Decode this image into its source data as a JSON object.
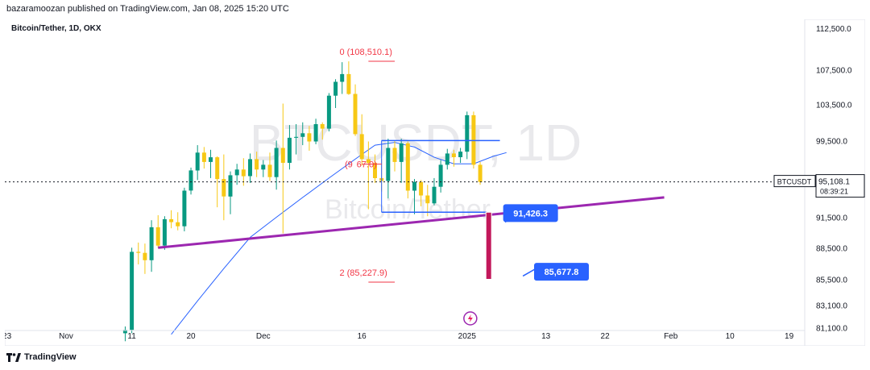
{
  "header": {
    "published_line": "bazaramoozan published on TradingView.com, Jan 08, 2025 15:20 UTC",
    "symbol_line": "Bitcoin/Tether, 1D, OKX",
    "watermark_symbol": "BTCUSDT, 1D",
    "watermark_name": "Bitcoin/Tether"
  },
  "footer": {
    "brand": "TradingView"
  },
  "colors": {
    "up": "#089981",
    "down": "#f7c815",
    "ma": "#2962ff",
    "trendline": "#9c27b0",
    "fib": "#f23645",
    "label_bg": "#2962ff",
    "bar_red": "#c2185b"
  },
  "chart_data": {
    "type": "candlestick",
    "title": "Bitcoin/Tether, 1D, OKX",
    "x_axis": {
      "ticks": [
        {
          "label": "23",
          "day": -9
        },
        {
          "label": "Nov",
          "day": 0
        },
        {
          "label": "11",
          "day": 10
        },
        {
          "label": "20",
          "day": 19
        },
        {
          "label": "Dec",
          "day": 30
        },
        {
          "label": "16",
          "day": 45
        },
        {
          "label": "2025",
          "day": 61
        },
        {
          "label": "13",
          "day": 73
        },
        {
          "label": "22",
          "day": 82
        },
        {
          "label": "Feb",
          "day": 92
        },
        {
          "label": "10",
          "day": 101
        },
        {
          "label": "19",
          "day": 110
        }
      ]
    },
    "y_axis": {
      "scale": "log",
      "range": [
        79500,
        114500
      ],
      "ticks": [
        "112,500.0",
        "107,500.0",
        "103,500.0",
        "99,500.0",
        "91,500.0",
        "88,500.0",
        "85,500.0",
        "83,100.0",
        "81,100.0"
      ]
    },
    "last_price": {
      "symbol": "BTCUSDT",
      "value": "95,108.1",
      "countdown": "08:39:21",
      "price": 95108.1
    },
    "fib_labels": [
      {
        "text": "0 (108,510.1)",
        "price": 108510.1
      },
      {
        "text": "(9",
        "price": 96967
      },
      {
        "text": "67.0)",
        "price": 96967
      },
      {
        "text": "2 (85,227.9)",
        "price": 85227.9
      }
    ],
    "projection_labels": [
      {
        "text": "91,426.3",
        "price": 91426.3
      },
      {
        "text": "85,677.8",
        "price": 85677.8
      }
    ],
    "trendline": {
      "from": {
        "day": 14,
        "price": 88500
      },
      "to": {
        "day": 91,
        "price": 93500
      }
    },
    "range_box": {
      "from_day": 48,
      "to_day": 66,
      "top": 99500,
      "bottom": 92000
    },
    "projection_bar": {
      "day": 64.3,
      "top": 92000,
      "bottom": 85500
    },
    "ma": [
      [
        16,
        80500
      ],
      [
        20,
        83500
      ],
      [
        24,
        86500
      ],
      [
        28,
        89500
      ],
      [
        32,
        91500
      ],
      [
        36,
        93500
      ],
      [
        40,
        95500
      ],
      [
        44,
        97500
      ],
      [
        47,
        99000
      ],
      [
        50,
        99300
      ],
      [
        53,
        98800
      ],
      [
        56,
        97700
      ],
      [
        59,
        97000
      ],
      [
        62,
        97000
      ],
      [
        65,
        97800
      ],
      [
        67,
        98200
      ]
    ],
    "candles": [
      [
        9,
        80600,
        81200,
        79900,
        80900
      ],
      [
        10,
        80900,
        88500,
        80600,
        88100
      ],
      [
        11,
        88100,
        89000,
        86900,
        88000
      ],
      [
        12,
        88000,
        88900,
        86000,
        87300
      ],
      [
        13,
        87300,
        91200,
        86200,
        90500
      ],
      [
        14,
        90500,
        91700,
        88500,
        88700
      ],
      [
        15,
        88700,
        91600,
        88300,
        91300
      ],
      [
        16,
        91300,
        92200,
        90400,
        91000
      ],
      [
        17,
        91000,
        92000,
        90200,
        90600
      ],
      [
        18,
        90600,
        94500,
        90100,
        94200
      ],
      [
        19,
        94200,
        96600,
        93800,
        96300
      ],
      [
        20,
        96300,
        99000,
        95300,
        98200
      ],
      [
        21,
        98200,
        98800,
        96500,
        97200
      ],
      [
        22,
        97200,
        98500,
        95500,
        97700
      ],
      [
        23,
        97700,
        97800,
        92500,
        95400
      ],
      [
        24,
        95400,
        98000,
        91200,
        93600
      ],
      [
        25,
        93600,
        96200,
        91800,
        95800
      ],
      [
        26,
        95800,
        97000,
        94800,
        96400
      ],
      [
        27,
        96400,
        97600,
        94700,
        95700
      ],
      [
        28,
        95700,
        98100,
        95000,
        97500
      ],
      [
        29,
        97500,
        98300,
        95600,
        96400
      ],
      [
        30,
        96400,
        97400,
        95600,
        96900
      ],
      [
        31,
        96900,
        98200,
        95200,
        95600
      ],
      [
        32,
        95600,
        99500,
        94300,
        98700
      ],
      [
        33,
        98700,
        103600,
        89900,
        97100
      ],
      [
        34,
        97100,
        101200,
        96400,
        99800
      ],
      [
        35,
        99800,
        101300,
        98000,
        99900
      ],
      [
        36,
        99900,
        101500,
        99000,
        100300
      ],
      [
        37,
        100300,
        101100,
        98400,
        99400
      ],
      [
        38,
        99400,
        101900,
        99100,
        101300
      ],
      [
        39,
        101300,
        101500,
        99600,
        100800
      ],
      [
        40,
        100800,
        104800,
        100500,
        104500
      ],
      [
        41,
        104500,
        106400,
        103100,
        106100
      ],
      [
        42,
        106100,
        108400,
        104700,
        107000
      ],
      [
        43,
        107000,
        108500,
        104600,
        104700
      ],
      [
        44,
        104700,
        105800,
        100000,
        100200
      ],
      [
        45,
        100200,
        102400,
        96800,
        97500
      ],
      [
        46,
        97500,
        99400,
        92300,
        97100
      ],
      [
        47,
        97100,
        98000,
        95000,
        95500
      ],
      [
        48,
        95500,
        97500,
        94100,
        95200
      ],
      [
        49,
        95200,
        99700,
        93400,
        98700
      ],
      [
        50,
        98700,
        99500,
        96200,
        97200
      ],
      [
        51,
        97200,
        99700,
        95000,
        99200
      ],
      [
        52,
        99200,
        99400,
        93400,
        94200
      ],
      [
        53,
        94200,
        95400,
        91800,
        95100
      ],
      [
        54,
        95100,
        95300,
        92600,
        93700
      ],
      [
        55,
        93700,
        94800,
        91600,
        92900
      ],
      [
        56,
        92900,
        95500,
        92700,
        94600
      ],
      [
        57,
        94600,
        97400,
        94000,
        96900
      ],
      [
        58,
        96900,
        98600,
        96400,
        98100
      ],
      [
        59,
        98100,
        98500,
        96700,
        97700
      ],
      [
        60,
        97700,
        98700,
        97100,
        98300
      ],
      [
        61,
        98300,
        102700,
        97500,
        102300
      ],
      [
        62,
        102300,
        102700,
        96500,
        96900
      ],
      [
        63,
        96900,
        97200,
        94800,
        95100
      ]
    ]
  }
}
